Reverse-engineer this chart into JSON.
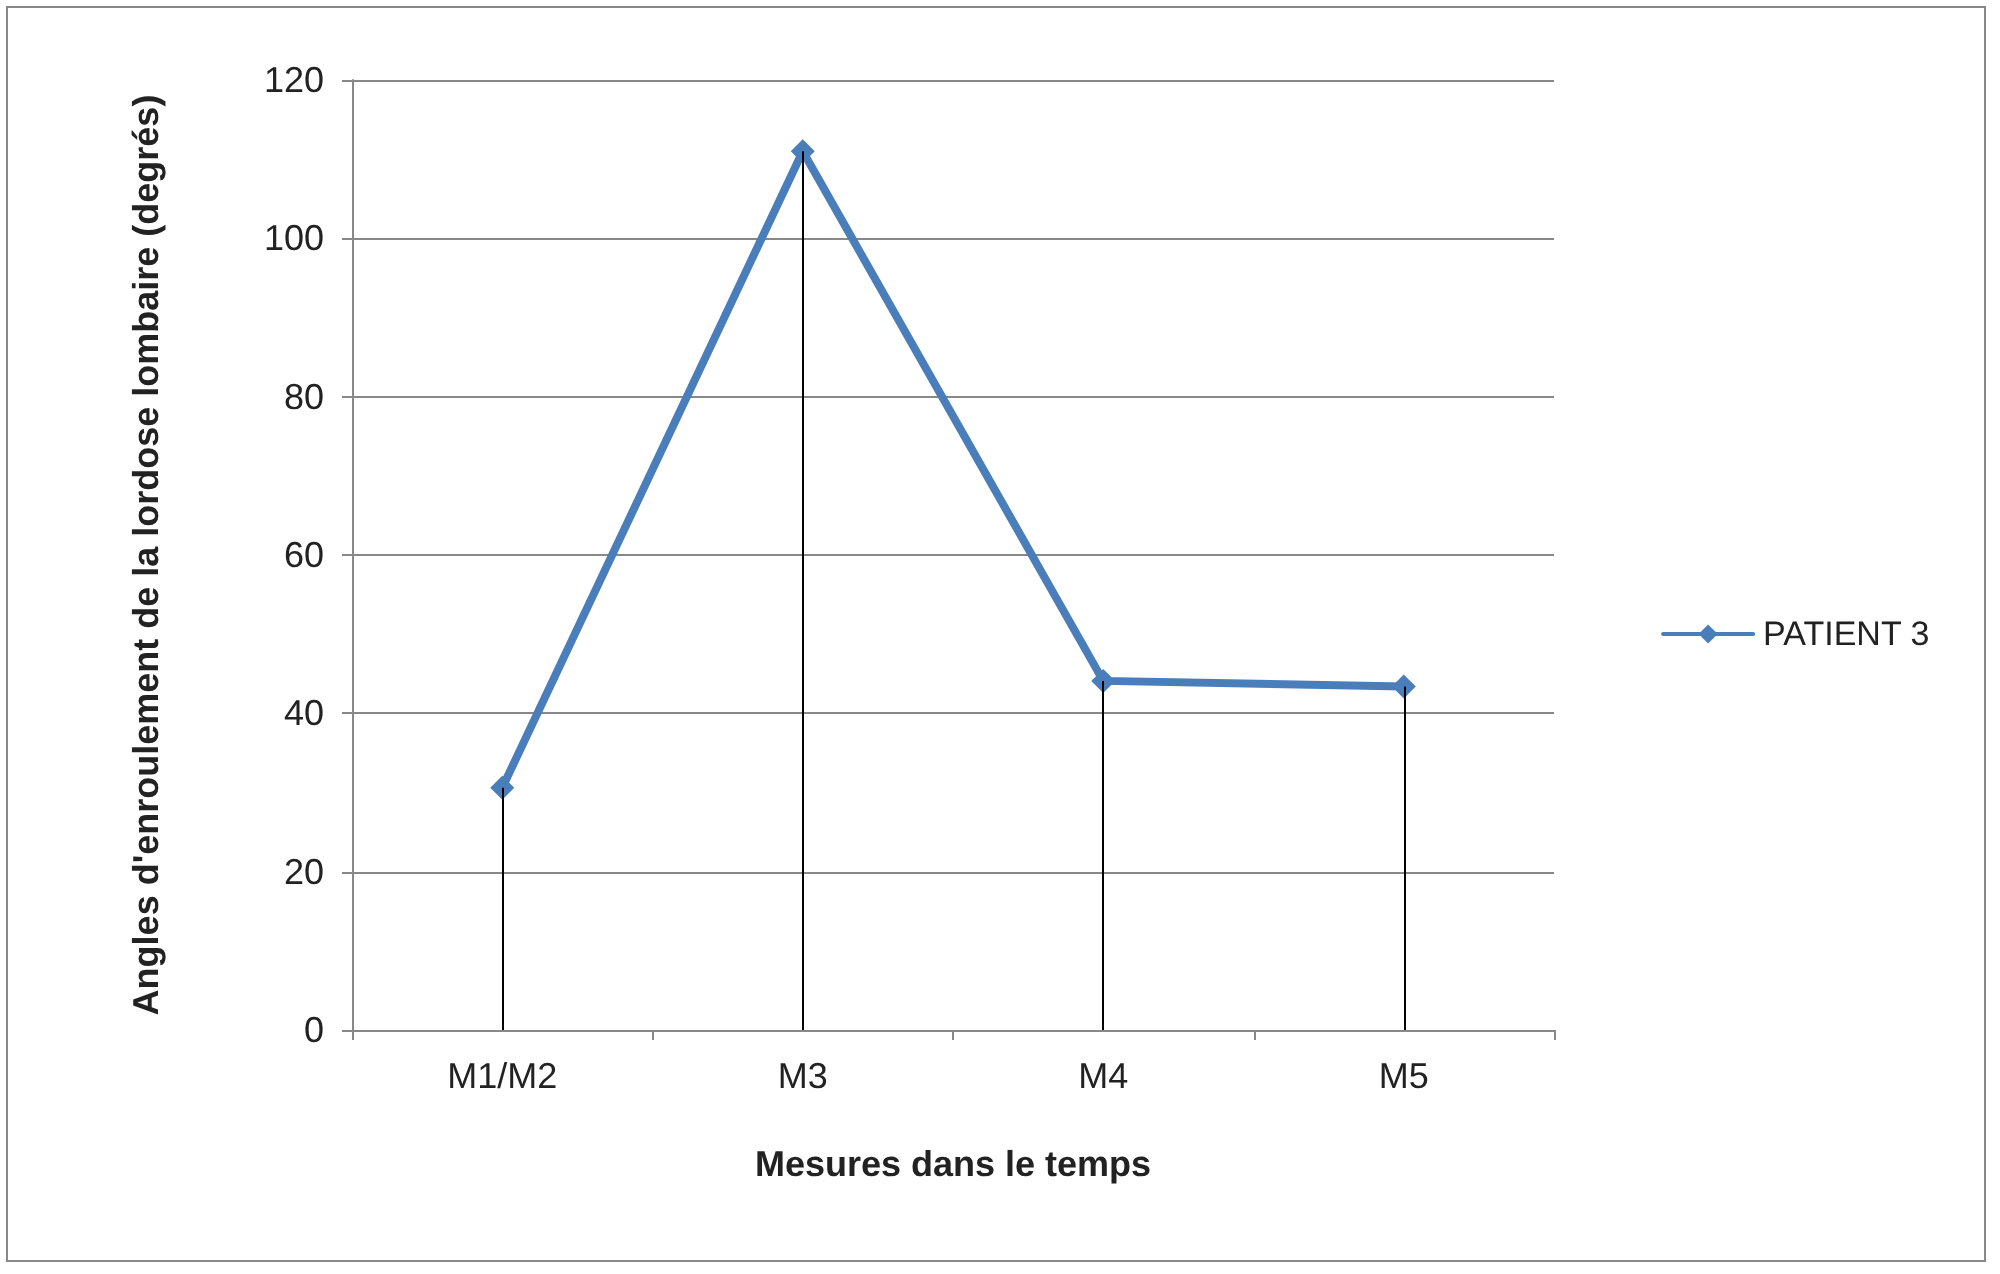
{
  "chart_data": {
    "type": "line",
    "xlabel": "Mesures dans le temps",
    "ylabel": "Angles d'enroulement de la lordose lombaire (degrés)",
    "categories": [
      "M1/M2",
      "M3",
      "M4",
      "M5"
    ],
    "series": [
      {
        "name": "PATIENT 3",
        "color": "#4a7ebb",
        "values": [
          30.6,
          111,
          44.1,
          43.4
        ],
        "errors": [
          [
            0,
            30.6
          ],
          [
            0,
            111
          ],
          [
            0,
            44.1
          ],
          [
            0,
            43.4
          ]
        ]
      }
    ],
    "ylim": [
      0,
      120
    ],
    "yticks": [
      0,
      20,
      40,
      60,
      80,
      100,
      120
    ],
    "grid": "y",
    "legend": "right",
    "marker": "diamond",
    "line_style": "solid"
  }
}
